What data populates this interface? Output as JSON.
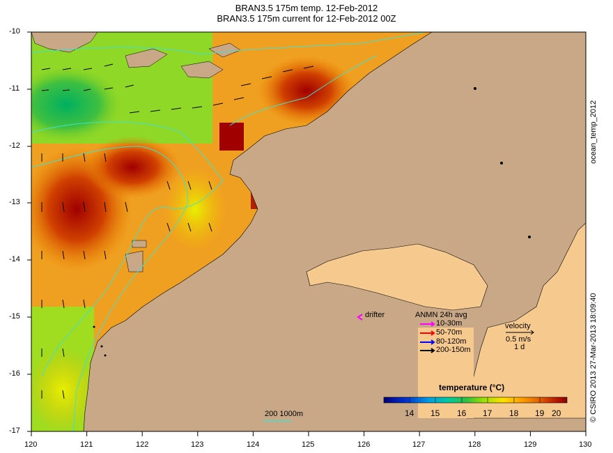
{
  "header": {
    "title_line1": "BRAN3.5 175m temp. 12-Feb-2012",
    "title_line2": "BRAN3.5 175m current for 12-Feb-2012 00Z"
  },
  "axes": {
    "x_ticks": [
      "120",
      "121",
      "122",
      "123",
      "124",
      "125",
      "126",
      "127",
      "128",
      "129",
      "130"
    ],
    "y_ticks": [
      "-10",
      "-11",
      "-12",
      "-13",
      "-14",
      "-15",
      "-16",
      "-17"
    ]
  },
  "legend": {
    "drifter_label": "drifter",
    "anmn_title": "ANMN 24h avg",
    "depth_ranges": [
      {
        "label": "10-30m",
        "color": "#ff00ff"
      },
      {
        "label": "50-70m",
        "color": "#ff0000"
      },
      {
        "label": "80-120m",
        "color": "#0000ff"
      },
      {
        "label": "200-150m",
        "color": "#000000"
      }
    ],
    "velocity_title": "velocity",
    "velocity_value": "0.5 m/s",
    "velocity_duration": "1 d",
    "isobath_label": "200 1000m"
  },
  "colorbar": {
    "title": "temperature (°C)",
    "ticks": [
      "14",
      "15",
      "16",
      "17",
      "18",
      "19",
      "20"
    ],
    "colors": [
      "#00007a",
      "#0022c8",
      "#0070e0",
      "#00b0d0",
      "#00c8a0",
      "#20c060",
      "#70d030",
      "#c8e000",
      "#ffe000",
      "#ffb000",
      "#f08000",
      "#d85000",
      "#b02000",
      "#8a0000"
    ]
  },
  "side": {
    "right_label": "ocean_temp_2012",
    "credit": "© CSIRO 2013   27-Mar-2013 18:09:40"
  },
  "colors": {
    "land": "#c8a886",
    "isobath": "#40e0d0",
    "warm": "#b02000",
    "cool": "#20c060"
  }
}
